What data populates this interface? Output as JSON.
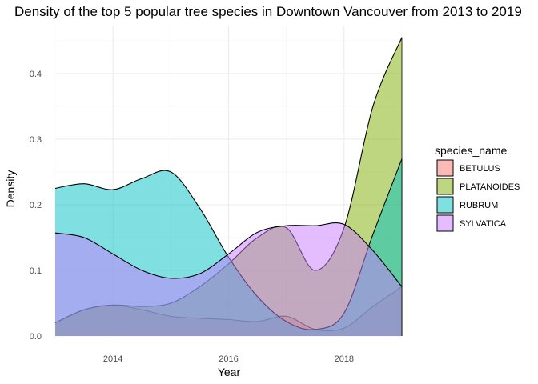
{
  "chart_data": {
    "type": "area",
    "title": "Density of the top 5 popular tree species in Downtown Vancouver from 2013 to 2019",
    "xlabel": "Year",
    "ylabel": "Density",
    "xlim": [
      2013,
      2019
    ],
    "ylim": [
      0,
      0.45
    ],
    "x_ticks": [
      2014,
      2016,
      2018
    ],
    "y_ticks": [
      0.0,
      0.1,
      0.2,
      0.3,
      0.4
    ],
    "y_tick_labels": [
      "0.0",
      "0.1",
      "0.2",
      "0.3",
      "0.4"
    ],
    "grid": true,
    "legend_title": "species_name",
    "legend_position": "right",
    "series": [
      {
        "name": "BETULUS",
        "color": "#F8766D",
        "x": [
          2013,
          2013.5,
          2014,
          2014.5,
          2015,
          2015.5,
          2016,
          2016.5,
          2017,
          2017.5,
          2018,
          2018.5,
          2019
        ],
        "values": [
          0.02,
          0.04,
          0.047,
          0.04,
          0.03,
          0.027,
          0.025,
          0.022,
          0.03,
          0.01,
          0.012,
          0.045,
          0.075
        ]
      },
      {
        "name": "PLATANOIDES",
        "color": "#7CAE00",
        "x": [
          2013,
          2013.5,
          2014,
          2014.5,
          2015,
          2015.5,
          2016,
          2016.5,
          2017,
          2017.5,
          2018,
          2018.5,
          2019
        ],
        "values": [
          0.02,
          0.04,
          0.047,
          0.045,
          0.05,
          0.075,
          0.11,
          0.15,
          0.165,
          0.1,
          0.165,
          0.35,
          0.455
        ]
      },
      {
        "name": "RUBRUM",
        "color": "#00BFC4",
        "x": [
          2013,
          2013.5,
          2014,
          2014.5,
          2015,
          2015.5,
          2016,
          2016.5,
          2017,
          2017.5,
          2018,
          2018.5,
          2019
        ],
        "values": [
          0.225,
          0.232,
          0.223,
          0.24,
          0.25,
          0.195,
          0.12,
          0.06,
          0.022,
          0.01,
          0.035,
          0.155,
          0.27
        ]
      },
      {
        "name": "SYLVATICA",
        "color": "#C77CFF",
        "x": [
          2013,
          2013.5,
          2014,
          2014.5,
          2015,
          2015.5,
          2016,
          2016.5,
          2017,
          2017.5,
          2018,
          2018.5,
          2019
        ],
        "values": [
          0.157,
          0.15,
          0.125,
          0.1,
          0.088,
          0.095,
          0.125,
          0.158,
          0.168,
          0.168,
          0.17,
          0.13,
          0.075
        ]
      }
    ]
  }
}
